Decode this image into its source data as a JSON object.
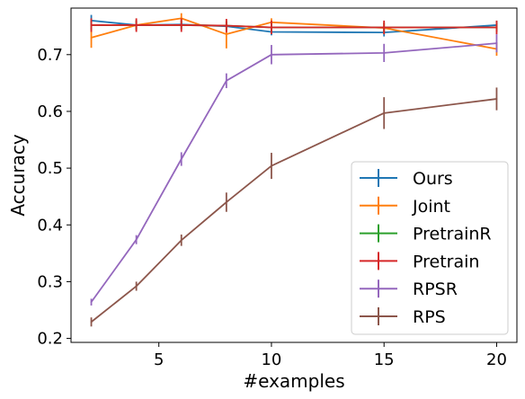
{
  "chart_data": {
    "type": "line",
    "title": "",
    "xlabel": "#examples",
    "ylabel": "Accuracy",
    "xlim": [
      1.1,
      20.9
    ],
    "ylim": [
      0.193,
      0.782
    ],
    "xticks": [
      5,
      10,
      15,
      20
    ],
    "yticks": [
      0.2,
      0.3,
      0.4,
      0.5,
      0.6,
      0.7
    ],
    "xtick_labels": [
      "5",
      "10",
      "15",
      "20"
    ],
    "ytick_labels": [
      "0.2",
      "0.3",
      "0.4",
      "0.5",
      "0.6",
      "0.7"
    ],
    "grid": false,
    "legend_position": "lower right",
    "x": [
      2,
      4,
      6,
      8,
      10,
      15,
      20
    ],
    "series": [
      {
        "name": "Ours",
        "color": "#1f77b4",
        "values": [
          0.76,
          0.752,
          0.753,
          0.75,
          0.74,
          0.739,
          0.752
        ],
        "errors": [
          0.01,
          0.008,
          0.008,
          0.008,
          0.006,
          0.007,
          0.007
        ]
      },
      {
        "name": "Joint",
        "color": "#ff7f0e",
        "values": [
          0.73,
          0.752,
          0.764,
          0.736,
          0.757,
          0.747,
          0.71
        ],
        "errors": [
          0.018,
          0.01,
          0.009,
          0.025,
          0.007,
          0.01,
          0.012
        ]
      },
      {
        "name": "PretrainR",
        "color": "#2ca02c",
        "values": [
          0.752,
          0.752,
          0.752,
          0.751,
          0.748,
          0.748,
          0.748
        ],
        "errors": [
          0.008,
          0.008,
          0.008,
          0.008,
          0.008,
          0.008,
          0.008
        ]
      },
      {
        "name": "Pretrain",
        "color": "#d62728",
        "values": [
          0.752,
          0.752,
          0.752,
          0.751,
          0.748,
          0.748,
          0.748
        ],
        "errors": [
          0.012,
          0.012,
          0.012,
          0.012,
          0.012,
          0.012,
          0.012
        ]
      },
      {
        "name": "RPSR",
        "color": "#9467bd",
        "values": [
          0.264,
          0.374,
          0.516,
          0.654,
          0.7,
          0.703,
          0.72
        ],
        "errors": [
          0.006,
          0.008,
          0.012,
          0.013,
          0.017,
          0.016,
          0.016
        ]
      },
      {
        "name": "RPS",
        "color": "#8c564b",
        "values": [
          0.229,
          0.292,
          0.373,
          0.44,
          0.504,
          0.597,
          0.622
        ],
        "errors": [
          0.008,
          0.008,
          0.01,
          0.017,
          0.023,
          0.028,
          0.02
        ]
      }
    ]
  }
}
